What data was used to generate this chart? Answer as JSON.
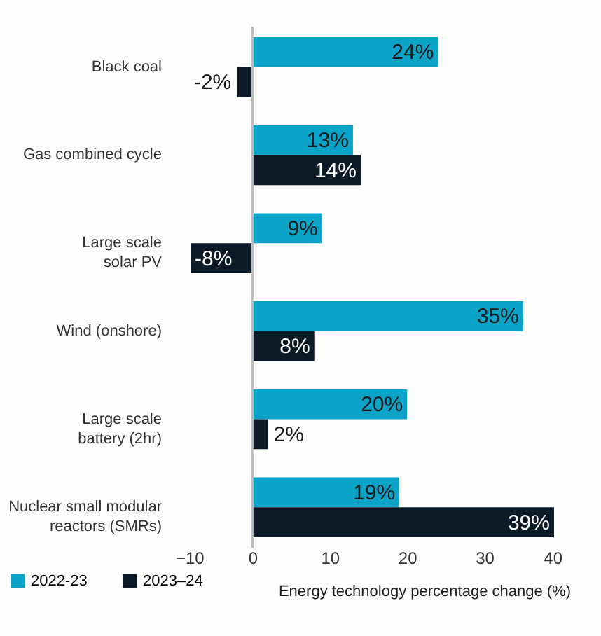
{
  "chart_data": {
    "type": "bar",
    "orientation": "horizontal",
    "xlabel": "Energy technology percentage change (%)",
    "categories": [
      "Black coal",
      "Gas combined cycle",
      "Large scale\nsolar PV",
      "Wind (onshore)",
      "Large scale\nbattery (2hr)",
      "Nuclear small modular\nreactors (SMRs)"
    ],
    "series": [
      {
        "name": "2022-23",
        "color": "#0ba3c7",
        "values": [
          24,
          13,
          9,
          35,
          20,
          19
        ],
        "value_labels": [
          "24%",
          "13%",
          "9%",
          "35%",
          "20%",
          "19%"
        ]
      },
      {
        "name": "2023–24",
        "color": "#0b1a26",
        "values": [
          -2,
          14,
          -8,
          8,
          2,
          39
        ],
        "value_labels": [
          "-2%",
          "14%",
          "-8%",
          "8%",
          "2%",
          "39%"
        ]
      }
    ],
    "xlim": [
      -10,
      40
    ],
    "xticks": [
      -10,
      0,
      10,
      20,
      30,
      40
    ],
    "grid": false,
    "legend": "bottom left",
    "ref_lines": [
      {
        "axis": "x",
        "value": 0,
        "color": "#bbbbbb"
      }
    ]
  }
}
